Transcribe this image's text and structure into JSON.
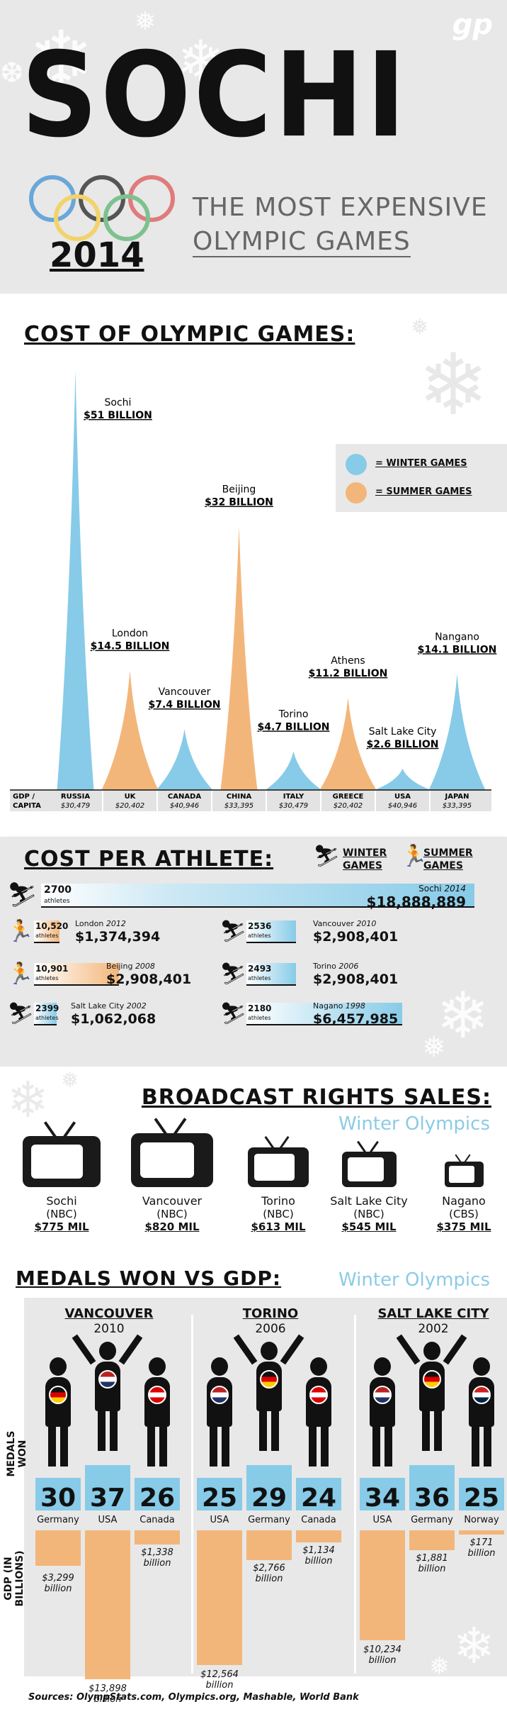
{
  "header": {
    "logo": "gp",
    "title": "SOCHI",
    "year": "2014",
    "subtitle_line1": "THE MOST EXPENSIVE",
    "subtitle_line2": "OLYMPIC GAMES"
  },
  "cost": {
    "heading": "COST OF  OLYMPIC GAMES:",
    "legend": {
      "winter": "= WINTER GAMES",
      "summer": "= SUMMER GAMES"
    },
    "colors": {
      "winter": "#87cbe8",
      "summer": "#f3b67a"
    },
    "gdp_label_line1": "GDP /",
    "gdp_label_line2": "CAPITA",
    "games": [
      {
        "city": "Sochi",
        "cost_label": "$51 BILLION",
        "country": "RUSSIA",
        "gdp": "$30,479",
        "type": "winter",
        "value": 51
      },
      {
        "city": "London",
        "cost_label": "$14.5 BILLION",
        "country": "UK",
        "gdp": "$20,402",
        "type": "summer",
        "value": 14.5
      },
      {
        "city": "Vancouver",
        "cost_label": "$7.4 BILLION",
        "country": "CANADA",
        "gdp": "$40,946",
        "type": "winter",
        "value": 7.4
      },
      {
        "city": "Beijing",
        "cost_label": "$32 BILLION",
        "country": "CHINA",
        "gdp": "$33,395",
        "type": "summer",
        "value": 32
      },
      {
        "city": "Torino",
        "cost_label": "$4.7 BILLION",
        "country": "ITALY",
        "gdp": "$30,479",
        "type": "winter",
        "value": 4.7
      },
      {
        "city": "Athens",
        "cost_label": "$11.2 BILLION",
        "country": "GREECE",
        "gdp": "$20,402",
        "type": "summer",
        "value": 11.2
      },
      {
        "city": "Salt Lake City",
        "cost_label": "$2.6 BILLION",
        "country": "USA",
        "gdp": "$40,946",
        "type": "winter",
        "value": 2.6
      },
      {
        "city": "Nangano",
        "cost_label": "$14.1 BILLION",
        "country": "JAPAN",
        "gdp": "$33,395",
        "type": "winter",
        "value": 14.1
      }
    ]
  },
  "athlete": {
    "heading": "COST PER ATHLETE:",
    "legend_winter": "WINTER GAMES",
    "legend_summer": "SUMMER GAMES",
    "athletes_word": "athletes",
    "sochi": {
      "count": "2700",
      "name": "Sochi",
      "year": "2014",
      "cost": "$18,888,889"
    },
    "rows": [
      {
        "count": "10,520",
        "name": "London",
        "year": "2012",
        "cost": "$1,374,394",
        "type": "summer"
      },
      {
        "count": "2536",
        "name": "Vancouver",
        "year": "2010",
        "cost": "$2,908,401",
        "type": "winter"
      },
      {
        "count": "10,901",
        "name": "Beijing",
        "year": "2008",
        "cost": "$2,908,401",
        "type": "summer"
      },
      {
        "count": "2493",
        "name": "Torino",
        "year": "2006",
        "cost": "$2,908,401",
        "type": "winter"
      },
      {
        "count": "2399",
        "name": "Salt Lake City",
        "year": "2002",
        "cost": "$1,062,068",
        "type": "winter"
      },
      {
        "count": "2180",
        "name": "Nagano",
        "year": "1998",
        "cost": "$6,457,985",
        "type": "winter"
      }
    ]
  },
  "broadcast": {
    "heading": "BROADCAST RIGHTS SALES:",
    "subheading": "Winter Olympics",
    "items": [
      {
        "city": "Sochi",
        "network": "(NBC)",
        "amount": "$775 MIL"
      },
      {
        "city": "Vancouver",
        "network": "(NBC)",
        "amount": "$820 MIL"
      },
      {
        "city": "Torino",
        "network": "(NBC)",
        "amount": "$613 MIL"
      },
      {
        "city": "Salt Lake City",
        "network": "(NBC)",
        "amount": "$545 MIL"
      },
      {
        "city": "Nagano",
        "network": "(CBS)",
        "amount": "$375 MIL"
      }
    ]
  },
  "medals": {
    "heading": "MEDALS WON VS GDP:",
    "subheading": "Winter Olympics",
    "axis_medals": "MEDALS WON",
    "axis_gdp": "GDP (IN BILLIONS)",
    "billion_word": "billion",
    "games": [
      {
        "city": "VANCOUVER",
        "year": "2010",
        "podium": [
          {
            "medals": "30",
            "country": "Germany",
            "gdp": "$3,299",
            "gdp_value": 3299
          },
          {
            "medals": "37",
            "country": "USA",
            "gdp": "$13,898",
            "gdp_value": 13898
          },
          {
            "medals": "26",
            "country": "Canada",
            "gdp": "$1,338",
            "gdp_value": 1338
          }
        ]
      },
      {
        "city": "TORINO",
        "year": "2006",
        "podium": [
          {
            "medals": "25",
            "country": "USA",
            "gdp": "$12,564",
            "gdp_value": 12564
          },
          {
            "medals": "29",
            "country": "Germany",
            "gdp": "$2,766",
            "gdp_value": 2766
          },
          {
            "medals": "24",
            "country": "Canada",
            "gdp": "$1,134",
            "gdp_value": 1134
          }
        ]
      },
      {
        "city": "SALT LAKE CITY",
        "year": "2002",
        "podium": [
          {
            "medals": "34",
            "country": "USA",
            "gdp": "$10,234",
            "gdp_value": 10234
          },
          {
            "medals": "36",
            "country": "Germany",
            "gdp": "$1,881",
            "gdp_value": 1881
          },
          {
            "medals": "25",
            "country": "Norway",
            "gdp": "$171",
            "gdp_value": 171
          }
        ]
      }
    ]
  },
  "footer": {
    "sources": "Sources: OlympStats.com, Olympics.org, Mashable, World Bank"
  }
}
